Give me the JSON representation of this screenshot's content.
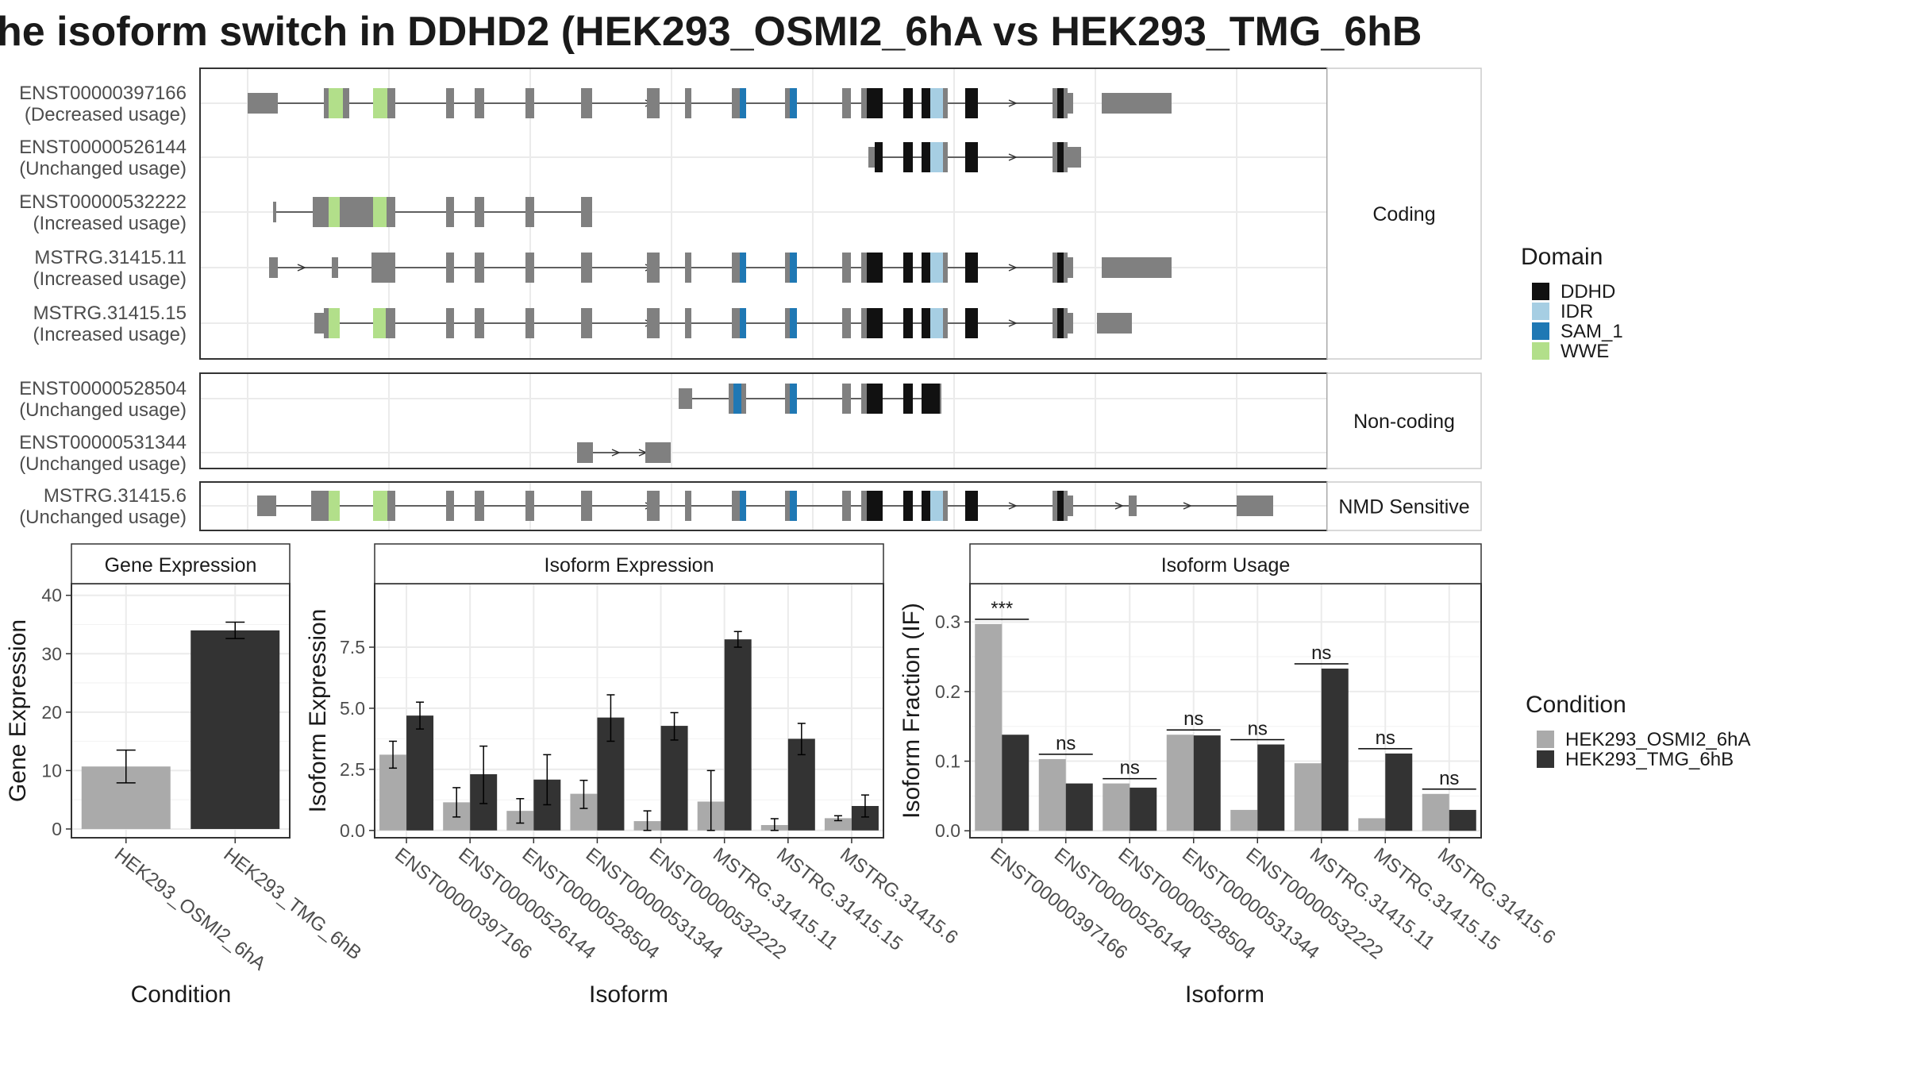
{
  "title": "he isoform switch in DDHD2 (HEK293_OSMI2_6hA vs HEK293_TMG_6hB",
  "colors": {
    "exon": "#808080",
    "DDHD": "#111111",
    "IDR": "#a6cee3",
    "SAM_1": "#1f78b4",
    "WWE": "#b2df8a",
    "cond_a": "#aaaaaa",
    "cond_b": "#333333"
  },
  "transcripts": {
    "groups": [
      {
        "label": "Coding",
        "isoforms": [
          {
            "id": "ENST00000397166",
            "usage": "(Decreased usage)"
          },
          {
            "id": "ENST00000526144",
            "usage": "(Unchanged usage)"
          },
          {
            "id": "ENST00000532222",
            "usage": "(Increased usage)"
          },
          {
            "id": "MSTRG.31415.11",
            "usage": "(Increased usage)"
          },
          {
            "id": "MSTRG.31415.15",
            "usage": "(Increased usage)"
          }
        ]
      },
      {
        "label": "Non-coding",
        "isoforms": [
          {
            "id": "ENST00000528504",
            "usage": "(Unchanged usage)"
          },
          {
            "id": "ENST00000531344",
            "usage": "(Unchanged usage)"
          }
        ]
      },
      {
        "label": "NMD Sensitive",
        "isoforms": [
          {
            "id": "MSTRG.31415.6",
            "usage": "(Unchanged usage)"
          }
        ]
      }
    ]
  },
  "domain_legend": {
    "title": "Domain",
    "items": [
      {
        "name": "DDHD",
        "color_key": "DDHD"
      },
      {
        "name": "IDR",
        "color_key": "IDR"
      },
      {
        "name": "SAM_1",
        "color_key": "SAM_1"
      },
      {
        "name": "WWE",
        "color_key": "WWE"
      }
    ]
  },
  "condition_legend": {
    "title": "Condition",
    "items": [
      "HEK293_OSMI2_6hA",
      "HEK293_TMG_6hB"
    ]
  },
  "chart_data": [
    {
      "type": "bar",
      "title": "Gene Expression",
      "xlabel": "Condition",
      "ylabel": "Gene Expression",
      "categories": [
        "HEK293_OSMI2_6hA",
        "HEK293_TMG_6hB"
      ],
      "values": [
        10.7,
        34.0
      ],
      "error": [
        [
          7.9,
          13.5
        ],
        [
          32.6,
          35.4
        ]
      ],
      "ylim": [
        -1.5,
        42
      ],
      "yticks": [
        "0",
        "10",
        "20",
        "30",
        "40"
      ]
    },
    {
      "type": "bar",
      "title": "Isoform Expression",
      "xlabel": "Isoform",
      "ylabel": "Isoform Expression",
      "categories": [
        "ENST00000397166",
        "ENST00000526144",
        "ENST00000528504",
        "ENST00000531344",
        "ENST00000532222",
        "MSTRG.31415.11",
        "MSTRG.31415.15",
        "MSTRG.31415.6"
      ],
      "series": [
        {
          "name": "HEK293_OSMI2_6hA",
          "values": [
            3.1,
            1.15,
            0.8,
            1.5,
            0.38,
            1.18,
            0.22,
            0.5
          ],
          "error": [
            [
              2.55,
              3.65
            ],
            [
              0.55,
              1.75
            ],
            [
              0.3,
              1.3
            ],
            [
              0.9,
              2.05
            ],
            [
              0.0,
              0.8
            ],
            [
              0.0,
              2.45
            ],
            [
              0.0,
              0.48
            ],
            [
              0.4,
              0.6
            ]
          ]
        },
        {
          "name": "HEK293_TMG_6hB",
          "values": [
            4.7,
            2.3,
            2.08,
            4.62,
            4.28,
            7.82,
            3.75,
            1.0
          ],
          "error": [
            [
              4.15,
              5.25
            ],
            [
              1.1,
              3.45
            ],
            [
              1.05,
              3.1
            ],
            [
              3.65,
              5.55
            ],
            [
              3.7,
              4.82
            ],
            [
              7.5,
              8.14
            ],
            [
              3.1,
              4.38
            ],
            [
              0.55,
              1.45
            ]
          ]
        }
      ],
      "ylim": [
        -0.3,
        10.1
      ],
      "yticks": [
        "0.0",
        "2.5",
        "5.0",
        "7.5"
      ]
    },
    {
      "type": "bar",
      "title": "Isoform Usage",
      "xlabel": "Isoform",
      "ylabel": "Isoform Fraction (IF)",
      "categories": [
        "ENST00000397166",
        "ENST00000526144",
        "ENST00000528504",
        "ENST00000531344",
        "ENST00000532222",
        "MSTRG.31415.11",
        "MSTRG.31415.15",
        "MSTRG.31415.6"
      ],
      "series": [
        {
          "name": "HEK293_OSMI2_6hA",
          "values": [
            0.297,
            0.103,
            0.068,
            0.138,
            0.03,
            0.097,
            0.018,
            0.053
          ]
        },
        {
          "name": "HEK293_TMG_6hB",
          "values": [
            0.138,
            0.068,
            0.062,
            0.137,
            0.124,
            0.233,
            0.111,
            0.03
          ]
        }
      ],
      "significance": [
        "***",
        "ns",
        "ns",
        "ns",
        "ns",
        "ns",
        "ns",
        "ns"
      ],
      "ylim": [
        -0.01,
        0.355
      ],
      "yticks": [
        "0.0",
        "0.1",
        "0.2",
        "0.3"
      ]
    }
  ]
}
